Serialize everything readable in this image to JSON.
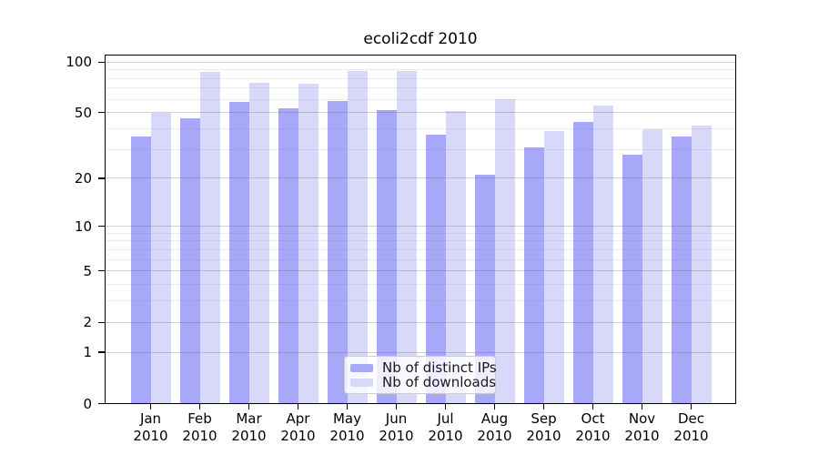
{
  "chart_data": {
    "type": "bar",
    "title": "ecoli2cdf 2010",
    "categories": [
      "Jan",
      "Feb",
      "Mar",
      "Apr",
      "May",
      "Jun",
      "Jul",
      "Aug",
      "Sep",
      "Oct",
      "Nov",
      "Dec"
    ],
    "year_label": "2010",
    "series": [
      {
        "name": "Nb of distinct IPs",
        "color": "#a8a8f8",
        "values": [
          36,
          46,
          58,
          53,
          59,
          52,
          37,
          21,
          31,
          44,
          28,
          36
        ]
      },
      {
        "name": "Nb of downloads",
        "color": "#d8d8f8",
        "values": [
          50,
          87,
          75,
          74,
          89,
          89,
          51,
          60,
          39,
          55,
          40,
          42
        ]
      }
    ],
    "y_axis": {
      "scale": "log10(1+x)",
      "tick_values": [
        100,
        50,
        20,
        10,
        5,
        2,
        1,
        0
      ],
      "tick_labels": [
        "100",
        "50",
        "20",
        "10",
        "5",
        "2",
        "1",
        "0"
      ],
      "minor_gridline_values": [
        3,
        4,
        6,
        7,
        8,
        9,
        30,
        40,
        60,
        70,
        80,
        90
      ],
      "range": [
        0,
        100
      ]
    },
    "grid": true,
    "legend_position": "inside-bottom-center"
  },
  "colors": {
    "bar_distinct_ips": "#a8a8f8",
    "bar_downloads": "#d8d8f8",
    "major_gridline": "rgba(100,100,100,0.30)",
    "minor_gridline": "rgba(120,120,120,0.14)",
    "axis": "#000000",
    "legend_border": "#cccccc",
    "text": "#1a1a1a"
  }
}
